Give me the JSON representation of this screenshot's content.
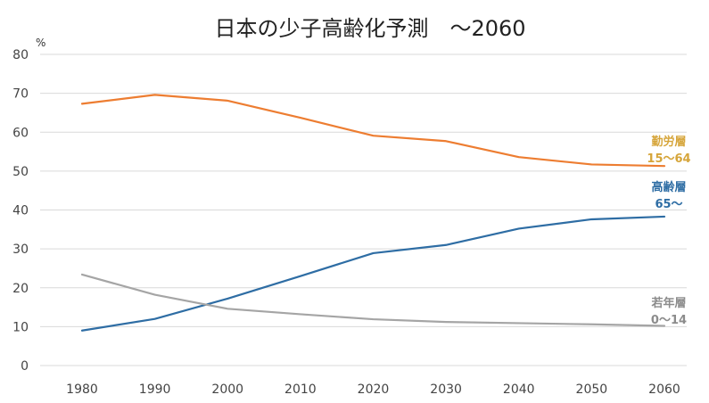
{
  "chart_data": {
    "type": "line",
    "title": "日本の少子高齢化予測　～2060",
    "ylabel": "%",
    "xlabel": "",
    "ylim": [
      0,
      80
    ],
    "yticks": [
      0,
      10,
      20,
      30,
      40,
      50,
      60,
      70,
      80
    ],
    "categories": [
      "1980",
      "1990",
      "2000",
      "2010",
      "2020",
      "2030",
      "2040",
      "2050",
      "2060"
    ],
    "grid": true,
    "series": [
      {
        "name": "勤労層",
        "range": "15～64",
        "color": "#ED7D31",
        "values": [
          67.3,
          69.6,
          68.1,
          63.7,
          59.1,
          57.7,
          53.6,
          51.7,
          51.3
        ]
      },
      {
        "name": "高齢層",
        "range": "65～",
        "color": "#2E6DA4",
        "values": [
          9.0,
          12.0,
          17.2,
          23.0,
          28.9,
          31.0,
          35.2,
          37.6,
          38.3
        ]
      },
      {
        "name": "若年層",
        "range": "0～14",
        "color": "#A5A5A5",
        "values": [
          23.4,
          18.2,
          14.6,
          13.2,
          11.9,
          11.2,
          10.9,
          10.6,
          10.2
        ]
      }
    ],
    "label_colors": {
      "勤労層": "#D6A53A",
      "高齢層": "#2E6DA4",
      "若年層": "#8C8C8C"
    }
  }
}
